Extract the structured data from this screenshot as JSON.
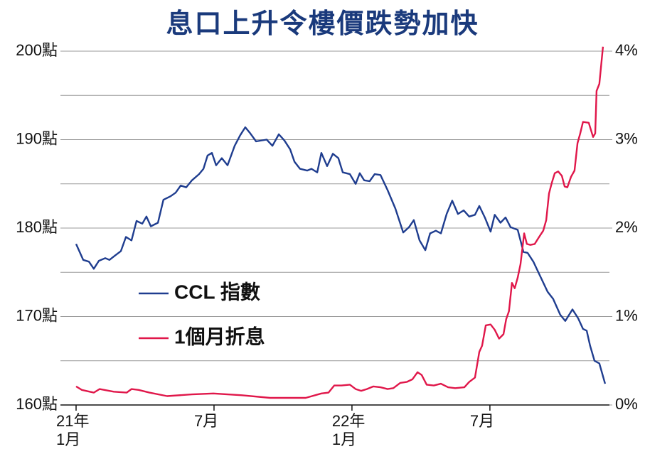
{
  "chart_data": {
    "type": "line",
    "title": "息口上升令樓價跌勢加快",
    "xlim": [
      -0.68,
      23.2
    ],
    "xticks": [
      {
        "value": 0,
        "label": "21年\n1月"
      },
      {
        "value": 6,
        "label": "7月"
      },
      {
        "value": 12,
        "label": "22年\n1月"
      },
      {
        "value": 18,
        "label": "7月"
      }
    ],
    "ylim": [
      160,
      200
    ],
    "yticks": [
      {
        "value": 160,
        "label": "160點"
      },
      {
        "value": 170,
        "label": "170點"
      },
      {
        "value": 180,
        "label": "180點"
      },
      {
        "value": 190,
        "label": "190點"
      },
      {
        "value": 200,
        "label": "200點"
      }
    ],
    "y_minor_ticks": [
      165,
      175,
      185,
      195
    ],
    "y2lim": [
      0,
      4
    ],
    "y2ticks": [
      {
        "value": 0,
        "label": "0%"
      },
      {
        "value": 1,
        "label": "1%"
      },
      {
        "value": 2,
        "label": "2%"
      },
      {
        "value": 3,
        "label": "3%"
      },
      {
        "value": 4,
        "label": "4%"
      }
    ],
    "grid": true,
    "legend": "left",
    "series": [
      {
        "name": "CCL 指數",
        "color": "#1f3d8f",
        "x": [
          0,
          0.31,
          0.56,
          0.77,
          0.99,
          1.27,
          1.45,
          1.7,
          1.95,
          2.17,
          2.41,
          2.63,
          2.88,
          3.06,
          3.25,
          3.56,
          3.8,
          4.11,
          4.33,
          4.55,
          4.79,
          5.04,
          5.35,
          5.54,
          5.72,
          5.91,
          6.09,
          6.34,
          6.59,
          6.9,
          7.14,
          7.36,
          7.58,
          7.83,
          8.29,
          8.54,
          8.82,
          9.06,
          9.31,
          9.5,
          9.74,
          10.05,
          10.24,
          10.49,
          10.67,
          10.92,
          11.17,
          11.41,
          11.6,
          11.91,
          12.16,
          12.34,
          12.53,
          12.77,
          12.99,
          13.24,
          13.55,
          13.89,
          14.23,
          14.48,
          14.69,
          14.94,
          15.19,
          15.4,
          15.65,
          15.87,
          16.12,
          16.36,
          16.61,
          16.86,
          17.1,
          17.35,
          17.54,
          17.78,
          18.03,
          18.21,
          18.46,
          18.68,
          18.9,
          19.21,
          19.46,
          19.64,
          19.89,
          20.2,
          20.51,
          20.75,
          21.06,
          21.28,
          21.59,
          21.84,
          22.05,
          22.21,
          22.36,
          22.55,
          22.76,
          23.01
        ],
        "values": [
          178.2,
          176.4,
          176.2,
          175.4,
          176.3,
          176.6,
          176.4,
          176.9,
          177.4,
          179.0,
          178.6,
          180.8,
          180.5,
          181.3,
          180.2,
          180.6,
          183.2,
          183.6,
          184.0,
          184.8,
          184.6,
          185.4,
          186.1,
          186.7,
          188.2,
          188.5,
          187.1,
          187.9,
          187.1,
          189.3,
          190.5,
          191.4,
          190.7,
          189.8,
          190.0,
          189.3,
          190.6,
          189.9,
          188.9,
          187.5,
          186.7,
          186.5,
          186.7,
          186.3,
          188.5,
          187.0,
          188.4,
          187.9,
          186.3,
          186.1,
          185.0,
          186.2,
          185.4,
          185.3,
          186.1,
          186.0,
          184.3,
          182.2,
          179.5,
          180.1,
          180.9,
          178.6,
          177.5,
          179.4,
          179.7,
          179.4,
          181.6,
          183.1,
          181.6,
          182.0,
          181.3,
          181.5,
          182.5,
          181.2,
          179.6,
          181.5,
          180.6,
          181.2,
          180.1,
          179.8,
          177.3,
          177.2,
          176.2,
          174.5,
          172.8,
          172.0,
          170.2,
          169.5,
          170.8,
          169.8,
          168.6,
          168.4,
          166.7,
          165.0,
          164.7,
          162.4
        ]
      },
      {
        "name": "1個月折息",
        "color": "#e0174a",
        "axis": "y2",
        "x": [
          0,
          0.25,
          0.77,
          1.02,
          1.64,
          2.2,
          2.41,
          2.72,
          3.19,
          3.96,
          5.04,
          5.97,
          7.21,
          8.44,
          9.99,
          10.67,
          10.98,
          11.23,
          11.54,
          11.91,
          12.16,
          12.4,
          12.65,
          12.93,
          13.24,
          13.55,
          13.8,
          14.1,
          14.38,
          14.63,
          14.85,
          15.03,
          15.25,
          15.56,
          15.87,
          16.18,
          16.49,
          16.89,
          17.1,
          17.35,
          17.54,
          17.66,
          17.82,
          18.03,
          18.21,
          18.4,
          18.59,
          18.71,
          18.83,
          18.96,
          19.08,
          19.21,
          19.33,
          19.49,
          19.61,
          19.76,
          19.95,
          20.14,
          20.32,
          20.45,
          20.57,
          20.69,
          20.82,
          20.97,
          21.13,
          21.25,
          21.37,
          21.53,
          21.68,
          21.81,
          21.93,
          22.05,
          22.3,
          22.49,
          22.58,
          22.64,
          22.76,
          22.92
        ],
        "values": [
          0.21,
          0.17,
          0.14,
          0.18,
          0.15,
          0.14,
          0.18,
          0.17,
          0.14,
          0.1,
          0.12,
          0.13,
          0.11,
          0.08,
          0.08,
          0.13,
          0.14,
          0.22,
          0.22,
          0.23,
          0.18,
          0.16,
          0.18,
          0.21,
          0.2,
          0.18,
          0.19,
          0.25,
          0.26,
          0.29,
          0.37,
          0.34,
          0.23,
          0.22,
          0.24,
          0.2,
          0.19,
          0.2,
          0.26,
          0.31,
          0.6,
          0.67,
          0.9,
          0.91,
          0.85,
          0.75,
          0.8,
          0.97,
          1.06,
          1.38,
          1.32,
          1.44,
          1.59,
          1.94,
          1.82,
          1.81,
          1.82,
          1.9,
          1.97,
          2.09,
          2.39,
          2.51,
          2.62,
          2.64,
          2.59,
          2.47,
          2.46,
          2.58,
          2.65,
          2.96,
          3.07,
          3.2,
          3.19,
          3.03,
          3.07,
          3.55,
          3.63,
          4.05
        ]
      }
    ]
  }
}
